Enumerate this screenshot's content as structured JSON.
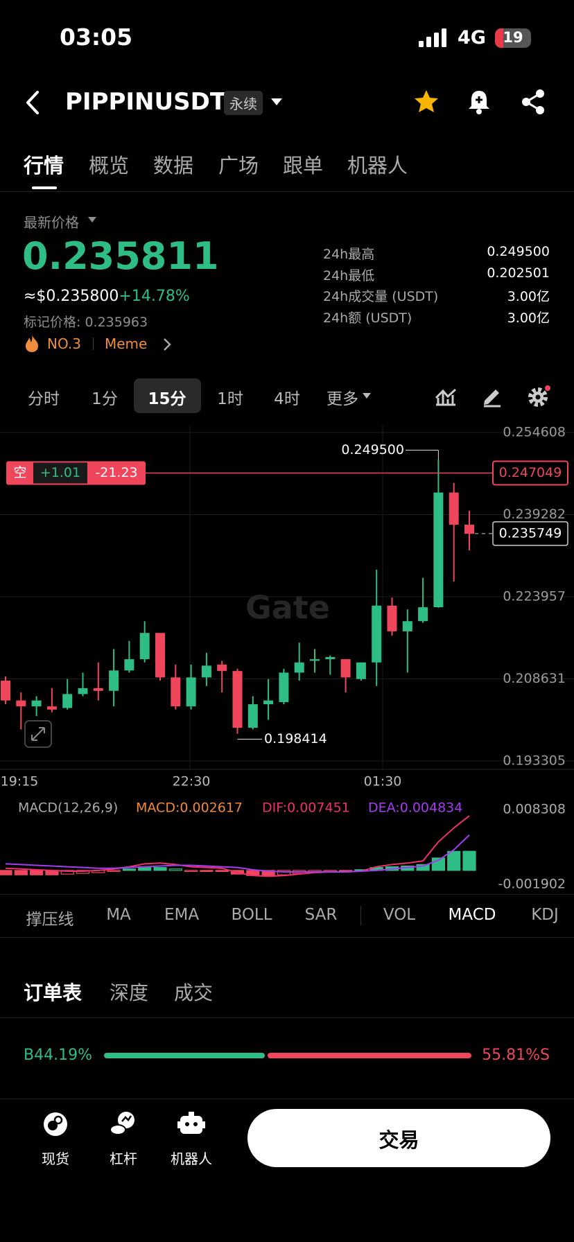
{
  "status": {
    "time": "03:05",
    "network": "4G",
    "battery": "19"
  },
  "header": {
    "symbol": "PIPPINUSDT",
    "badge": "永续"
  },
  "tabs": [
    "行情",
    "概览",
    "数据",
    "广场",
    "跟单",
    "机器人"
  ],
  "ticker": {
    "label": "最新价格",
    "price": "0.235811",
    "usd": "≈$0.235800",
    "change": "+14.78%",
    "mark_label": "标记价格:",
    "mark": "0.235963",
    "rank": "NO.3",
    "tag": "Meme",
    "stats": [
      [
        "24h最高",
        "0.249500"
      ],
      [
        "24h最低",
        "0.202501"
      ],
      [
        "24h成交量 (USDT)",
        "3.00亿"
      ],
      [
        "24h额 (USDT)",
        "3.00亿"
      ]
    ]
  },
  "intervals": [
    "分时",
    "1分",
    "15分",
    "1时",
    "4时",
    "更多"
  ],
  "selected_interval": 2,
  "kline": {
    "type": "candlestick",
    "up_color": "#2ebd85",
    "down_color": "#f0465c",
    "open": [
      0.2083,
      0.2046,
      0.2035,
      0.2035,
      0.2032,
      0.2058,
      0.2069,
      0.2064,
      0.2102,
      0.2123,
      0.2172,
      0.2089,
      0.2035,
      0.2089,
      0.2113,
      0.2101,
      0.1995,
      0.2039,
      0.2043,
      0.2098,
      0.212,
      0.2123,
      0.2123,
      0.2086,
      0.2117,
      0.2223,
      0.2175,
      0.2194,
      0.222,
      0.2434,
      0.2374
    ],
    "high": [
      0.2091,
      0.2061,
      0.2054,
      0.2069,
      0.2086,
      0.2098,
      0.2117,
      0.2142,
      0.2157,
      0.2194,
      0.2172,
      0.2113,
      0.2113,
      0.2135,
      0.212,
      0.2105,
      0.2054,
      0.2086,
      0.2105,
      0.2154,
      0.2142,
      0.213,
      0.2123,
      0.2117,
      0.229,
      0.2238,
      0.2216,
      0.2275,
      0.2495,
      0.2452,
      0.24
    ],
    "low": [
      0.2039,
      0.1992,
      0.2017,
      0.2024,
      0.2029,
      0.2054,
      0.2046,
      0.2035,
      0.2098,
      0.2117,
      0.2083,
      0.2029,
      0.2029,
      0.2073,
      0.2061,
      0.1984,
      0.1992,
      0.201,
      0.2039,
      0.2083,
      0.2098,
      0.2094,
      0.2061,
      0.2083,
      0.2073,
      0.2167,
      0.2098,
      0.2191,
      0.2219,
      0.2268,
      0.2326
    ],
    "close": [
      0.2046,
      0.2035,
      0.2046,
      0.2029,
      0.2058,
      0.2069,
      0.2064,
      0.2102,
      0.2123,
      0.2172,
      0.2089,
      0.2035,
      0.2089,
      0.2111,
      0.2101,
      0.1995,
      0.2039,
      0.2046,
      0.2098,
      0.2117,
      0.2123,
      0.2127,
      0.2089,
      0.2117,
      0.2223,
      0.2175,
      0.2194,
      0.222,
      0.2434,
      0.2374,
      0.2357
    ],
    "ylim": [
      0.193305,
      0.254608
    ],
    "yticks": [
      0.254608,
      0.239282,
      0.223957,
      0.208631,
      0.193305
    ],
    "times": [
      "19:15",
      "22:30",
      "01:30"
    ],
    "high_mark": {
      "value": 0.2495,
      "label": "0.249500"
    },
    "low_mark": 0.198414,
    "position_price": 0.247049,
    "last_price": 0.235749,
    "position": {
      "side": "空",
      "qty": "+1.01",
      "pnl": "-21.23"
    },
    "watermark": "Gate"
  },
  "macd": {
    "title": "MACD(12,26,9)",
    "macd_label": "MACD:0.002617",
    "dif_label": "DIF:0.007451",
    "dea_label": "DEA:0.004834",
    "macd_color": "#f0883a",
    "dif_color": "#ef2f6c",
    "dea_color": "#a43cf0",
    "ylim": [
      -0.001902,
      0.008308
    ],
    "yticks": [
      0.008308,
      -0.001902
    ],
    "histogram": [
      -0.0006,
      -0.0006,
      -0.0006,
      -0.0006,
      -0.0005,
      -0.0004,
      -0.0003,
      -0.0001,
      0.0002,
      0.0004,
      0.0004,
      0.0002,
      -0.0001,
      -0.0001,
      -0.0001,
      -0.0005,
      -0.0007,
      -0.0007,
      -0.0006,
      -0.0004,
      -0.0002,
      -0.0001,
      -0.0001,
      0.0001,
      0.0004,
      0.0005,
      0.0006,
      0.0008,
      0.0017,
      0.0026,
      0.002617
    ],
    "dif": [
      0.0003,
      0.0002,
      0.0001,
      0.0,
      -0.0001,
      -0.0001,
      0.0,
      0.0002,
      0.0005,
      0.0009,
      0.001,
      0.0008,
      0.0005,
      0.0004,
      0.0003,
      -0.0003,
      -0.0007,
      -0.0008,
      -0.0007,
      -0.0005,
      -0.0003,
      -0.0002,
      -0.0002,
      -0.0001,
      0.0005,
      0.0008,
      0.001,
      0.0013,
      0.0039,
      0.0058,
      0.007451
    ],
    "dea": [
      0.0009,
      0.0008,
      0.0007,
      0.0006,
      0.0005,
      0.0004,
      0.0003,
      0.0003,
      0.0004,
      0.0005,
      0.0006,
      0.0007,
      0.0007,
      0.0006,
      0.0005,
      0.0004,
      0.0001,
      -0.0001,
      -0.0002,
      -0.0002,
      -0.0002,
      -0.0002,
      -0.0002,
      -0.0001,
      0.0,
      0.0002,
      0.0004,
      0.0006,
      0.0014,
      0.0028,
      0.004834
    ]
  },
  "indicators": [
    "撑压线",
    "MA",
    "EMA",
    "BOLL",
    "SAR",
    "VOL",
    "MACD",
    "KDJ"
  ],
  "active_indicator": 6,
  "orderbook": {
    "tabs": [
      "订单表",
      "深度",
      "成交"
    ],
    "names": [
      "B",
      "S"
    ],
    "values": [
      44.19,
      55.81
    ],
    "value_labels": [
      "44.19%",
      "55.81%"
    ]
  },
  "bottom": {
    "items": [
      "现货",
      "杠杆",
      "机器人"
    ],
    "trade": "交易"
  }
}
